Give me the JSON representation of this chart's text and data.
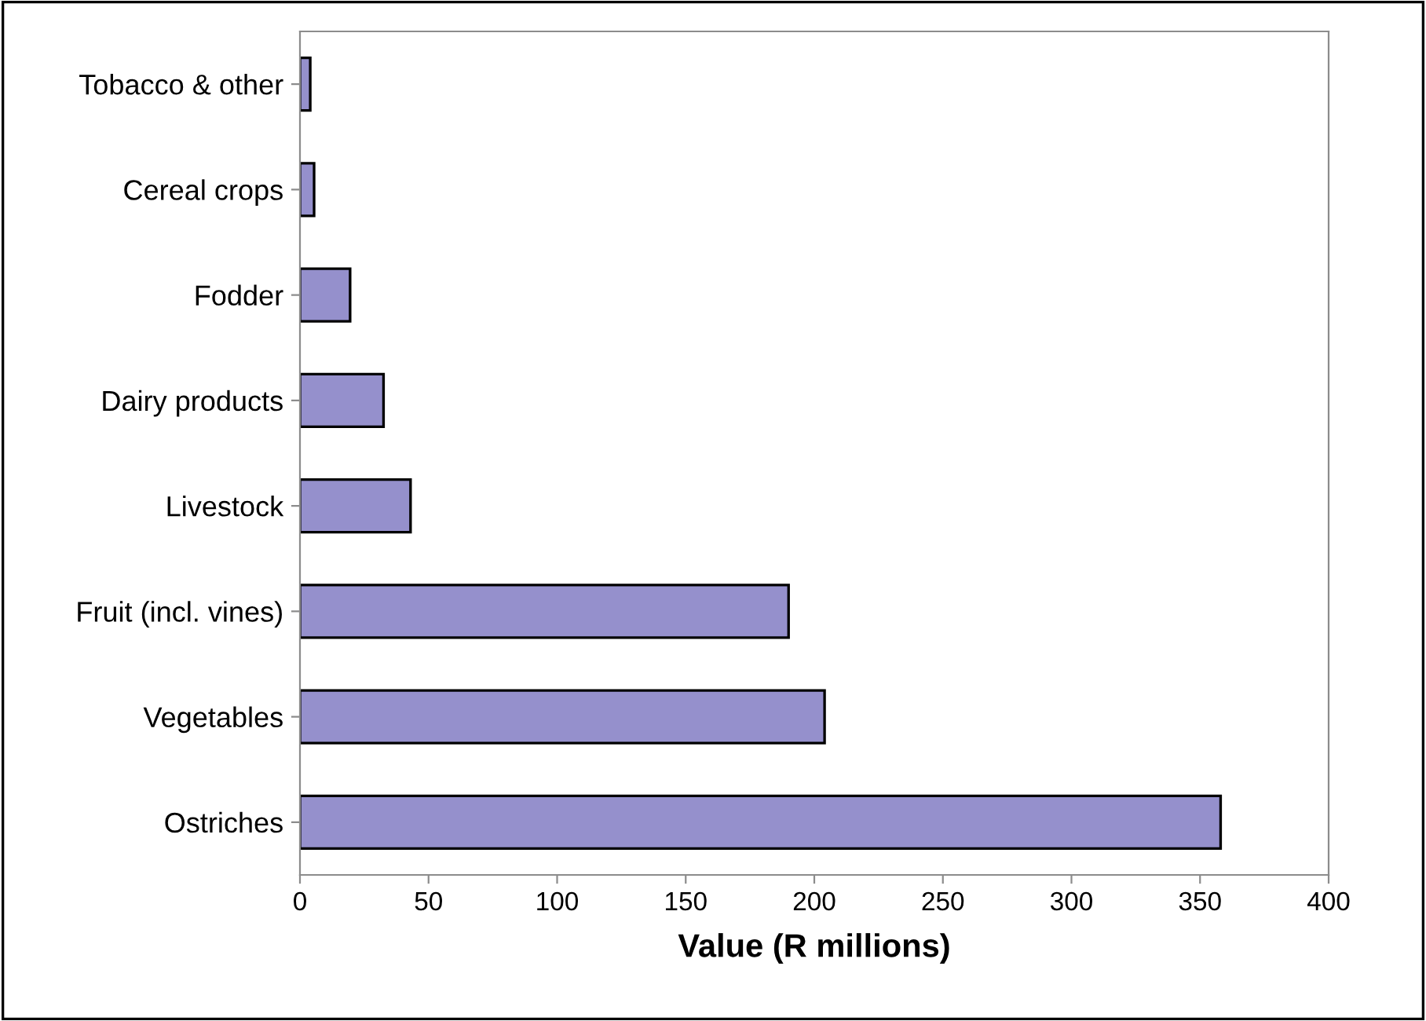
{
  "chart_data": {
    "type": "bar",
    "orientation": "horizontal",
    "xlabel": "Value (R millions)",
    "categories": [
      "Tobacco & other",
      "Cereal crops",
      "Fodder",
      "Dairy products",
      "Livestock",
      "Fruit (incl. vines)",
      "Vegetables",
      "Ostriches"
    ],
    "values": [
      4,
      5.5,
      19.5,
      32.5,
      43,
      190,
      204,
      358
    ],
    "color": "#9590cc",
    "xlim": [
      0,
      400
    ],
    "xticks": [
      0,
      50,
      100,
      150,
      200,
      250,
      300,
      350,
      400
    ],
    "grid": false,
    "legend": false
  }
}
